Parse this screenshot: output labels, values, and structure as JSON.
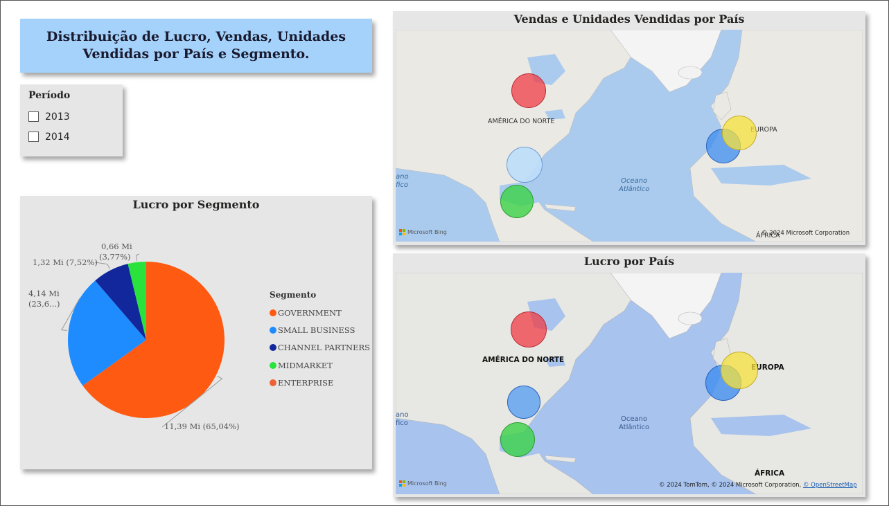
{
  "header": {
    "title": "Distribuição de Lucro, Vendas, Unidades Vendidas por País e Segmento."
  },
  "slicer": {
    "title": "Período",
    "items": [
      {
        "label": "2013",
        "checked": false
      },
      {
        "label": "2014",
        "checked": false
      }
    ]
  },
  "pie": {
    "title": "Lucro por Segmento",
    "legend_title": "Segmento",
    "legend_items": [
      {
        "label": "GOVERNMENT",
        "color": "#ff5a12"
      },
      {
        "label": "SMALL BUSINESS",
        "color": "#1e8cff"
      },
      {
        "label": "CHANNEL PARTNERS",
        "color": "#11279b"
      },
      {
        "label": "MIDMARKET",
        "color": "#29e33c"
      },
      {
        "label": "ENTERPRISE",
        "color": "#ee6138"
      }
    ],
    "data_labels": {
      "government": "11,39 Mi (65,04%)",
      "small_business_1": "4,14 Mi",
      "small_business_2": "(23,6...)",
      "channel_partners": "1,32 Mi (7,52%)",
      "midmarket_1": "0,66 Mi",
      "midmarket_2": "(3,77%)"
    }
  },
  "chart_data": [
    {
      "type": "pie",
      "title": "Lucro por Segmento",
      "legend_title": "Segmento",
      "categories": [
        "GOVERNMENT",
        "SMALL BUSINESS",
        "CHANNEL PARTNERS",
        "MIDMARKET",
        "ENTERPRISE"
      ],
      "values": [
        11.39,
        4.14,
        1.32,
        0.66,
        0
      ],
      "percent": [
        65.04,
        23.6,
        7.52,
        3.77,
        0
      ],
      "unit": "Mi",
      "colors": [
        "#ff5a12",
        "#1e8cff",
        "#11279b",
        "#29e33c",
        "#ee6138"
      ],
      "legend_position": "right"
    }
  ],
  "map_top": {
    "title": "Vendas e Unidades Vendidas por País",
    "labels": {
      "na": "AMÉRICA DO NORTE",
      "eu": "EUROPA",
      "af": "ÁFRICA"
    },
    "ocean_1": "Oceano",
    "ocean_2": "Atlântico",
    "pacific_1": "ano",
    "pacific_2": "fico",
    "bing": "Microsoft Bing",
    "copyright": "© 2024 Microsoft Corporation"
  },
  "map_bottom": {
    "title": "Lucro por País",
    "labels": {
      "na": "AMÉRICA DO NORTE",
      "eu": "EUROPA",
      "af": "ÁFRICA"
    },
    "ocean_1": "Oceano",
    "ocean_2": "Atlântico",
    "pacific_1": "ano",
    "pacific_2": "fico",
    "bing": "Microsoft Bing",
    "copyright_prefix": "© 2024 TomTom, © 2024 Microsoft Corporation, ",
    "copyright_link": "© OpenStreetMap"
  }
}
